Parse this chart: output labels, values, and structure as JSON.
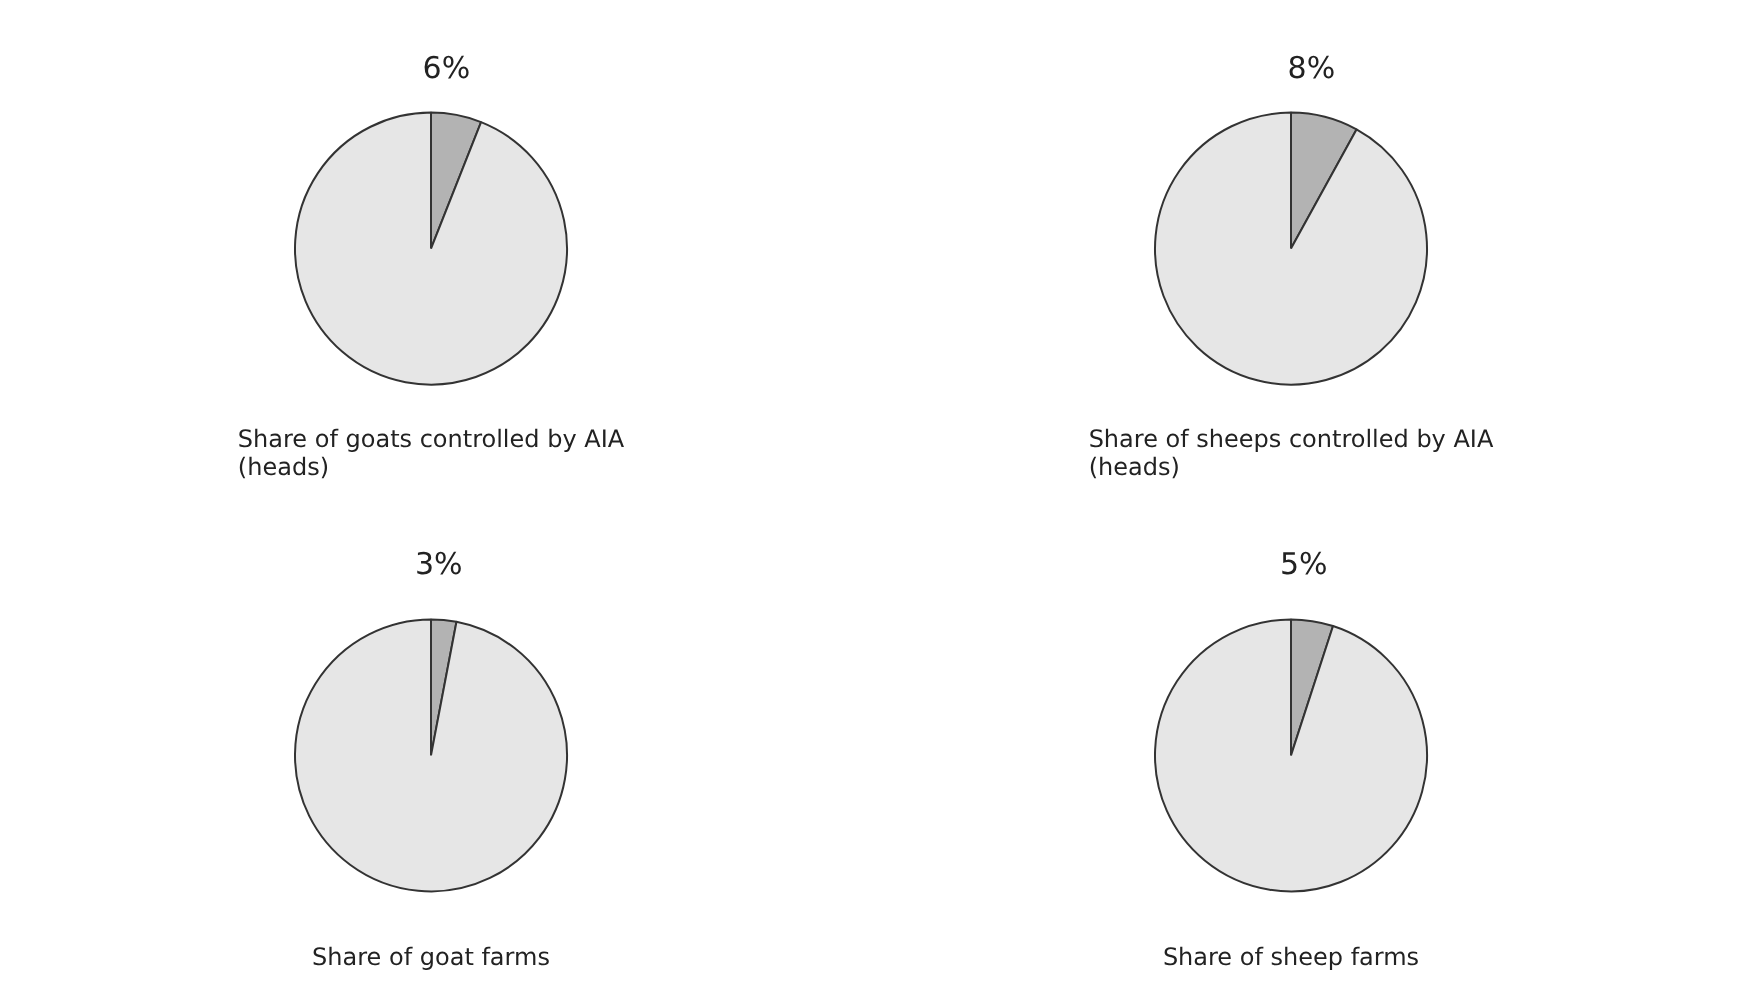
{
  "chart_data": [
    {
      "type": "pie",
      "title": "Share of goats controlled by AIA\n(heads)",
      "categories": [
        null,
        null
      ],
      "values": [
        6,
        94
      ],
      "colors": [
        "#b3b3b3",
        "#e6e6e6"
      ],
      "value_labels": [
        "6%",
        null
      ]
    },
    {
      "type": "pie",
      "title": "Share of sheeps controlled by AIA\n(heads)",
      "categories": [
        null,
        null
      ],
      "values": [
        8,
        92
      ],
      "colors": [
        "#b3b3b3",
        "#e6e6e6"
      ],
      "value_labels": [
        "8%",
        null
      ]
    },
    {
      "type": "pie",
      "title": "Share of goat farms",
      "categories": [
        null,
        null
      ],
      "values": [
        3,
        97
      ],
      "colors": [
        "#b3b3b3",
        "#e6e6e6"
      ],
      "value_labels": [
        "3%",
        null
      ]
    },
    {
      "type": "pie",
      "title": "Share of sheep farms",
      "categories": [
        null,
        null
      ],
      "values": [
        5,
        95
      ],
      "colors": [
        "#b3b3b3",
        "#e6e6e6"
      ],
      "value_labels": [
        "5%",
        null
      ]
    }
  ]
}
